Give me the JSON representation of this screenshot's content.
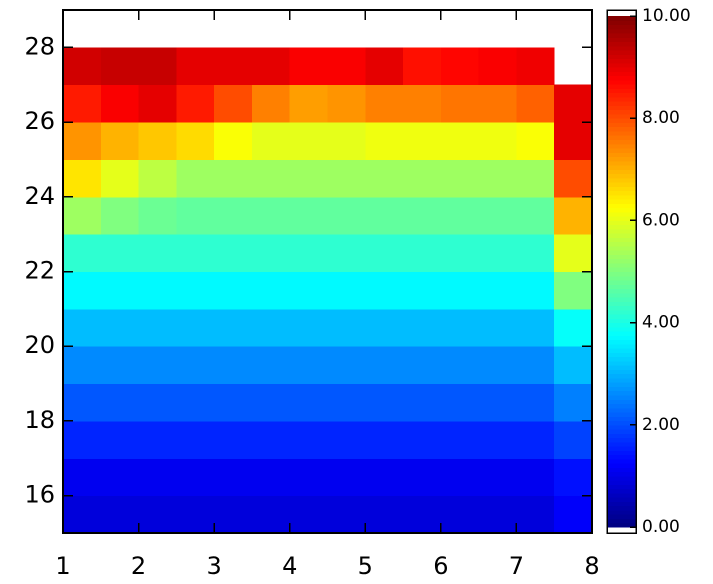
{
  "chart_data": {
    "type": "heatmap",
    "colormap": "jet",
    "x": [
      1.25,
      1.75,
      2.25,
      2.75,
      3.25,
      3.75,
      4.25,
      4.75,
      5.25,
      5.75,
      6.25,
      6.75,
      7.25,
      7.75
    ],
    "y": [
      15.5,
      16.5,
      17.5,
      18.5,
      19.5,
      20.5,
      21.5,
      22.5,
      23.5,
      24.5,
      25.5,
      26.5,
      27.5,
      28.5
    ],
    "z": [
      [
        0.9,
        0.9,
        0.9,
        0.9,
        0.9,
        0.9,
        0.9,
        0.9,
        0.9,
        0.9,
        0.9,
        0.9,
        0.9,
        1.2
      ],
      [
        1.1,
        1.1,
        1.1,
        1.1,
        1.1,
        1.1,
        1.1,
        1.1,
        1.1,
        1.1,
        1.1,
        1.1,
        1.1,
        1.4
      ],
      [
        1.6,
        1.6,
        1.6,
        1.6,
        1.6,
        1.6,
        1.6,
        1.6,
        1.6,
        1.6,
        1.6,
        1.6,
        1.6,
        1.9
      ],
      [
        2.1,
        2.1,
        2.1,
        2.1,
        2.1,
        2.1,
        2.1,
        2.1,
        2.1,
        2.1,
        2.1,
        2.1,
        2.1,
        2.5
      ],
      [
        2.6,
        2.6,
        2.6,
        2.6,
        2.6,
        2.6,
        2.6,
        2.6,
        2.6,
        2.6,
        2.6,
        2.6,
        2.6,
        3.1
      ],
      [
        3.1,
        3.1,
        3.1,
        3.1,
        3.1,
        3.1,
        3.1,
        3.1,
        3.1,
        3.1,
        3.1,
        3.1,
        3.1,
        3.8
      ],
      [
        3.7,
        3.7,
        3.7,
        3.7,
        3.7,
        3.7,
        3.7,
        3.7,
        3.7,
        3.7,
        3.7,
        3.7,
        3.7,
        5.0
      ],
      [
        4.2,
        4.2,
        4.2,
        4.2,
        4.2,
        4.2,
        4.2,
        4.2,
        4.2,
        4.2,
        4.2,
        4.2,
        4.2,
        6.0
      ],
      [
        5.3,
        5.0,
        4.8,
        4.7,
        4.7,
        4.7,
        4.7,
        4.7,
        4.7,
        4.7,
        4.7,
        4.7,
        4.7,
        7.0
      ],
      [
        6.5,
        6.0,
        5.6,
        5.3,
        5.3,
        5.3,
        5.3,
        5.3,
        5.3,
        5.3,
        5.3,
        5.3,
        5.3,
        8.0
      ],
      [
        7.3,
        7.0,
        6.8,
        6.6,
        6.2,
        6.0,
        6.0,
        6.0,
        6.1,
        6.1,
        6.1,
        6.1,
        6.2,
        9.0
      ],
      [
        8.5,
        8.8,
        9.0,
        8.5,
        8.0,
        7.5,
        7.2,
        7.3,
        7.5,
        7.5,
        7.6,
        7.6,
        7.8,
        9.0
      ],
      [
        9.2,
        9.3,
        9.3,
        9.0,
        9.0,
        9.0,
        8.8,
        8.8,
        9.0,
        8.6,
        8.7,
        8.8,
        8.9,
        null
      ],
      [
        null,
        null,
        null,
        null,
        null,
        null,
        null,
        null,
        null,
        null,
        null,
        null,
        null,
        null
      ]
    ],
    "xlim": [
      1,
      8
    ],
    "xticks": [
      1,
      2,
      3,
      4,
      5,
      6,
      7,
      8
    ],
    "ylim": [
      15,
      29
    ],
    "yticks": [
      16,
      18,
      20,
      22,
      24,
      26,
      28
    ],
    "clim": [
      0,
      10
    ],
    "cticks": [
      {
        "value": 0,
        "label": "0.00"
      },
      {
        "value": 2,
        "label": "2.00"
      },
      {
        "value": 4,
        "label": "4.00"
      },
      {
        "value": 6,
        "label": "6.00"
      },
      {
        "value": 8,
        "label": "8.00"
      },
      {
        "value": 10,
        "label": "10.00"
      }
    ]
  }
}
